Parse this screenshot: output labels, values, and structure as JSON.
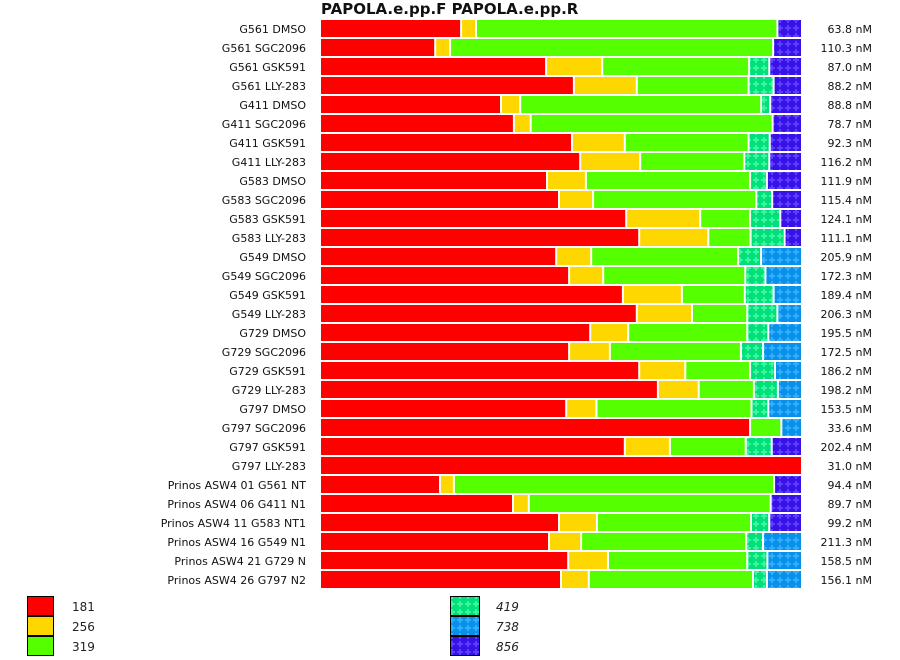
{
  "chart_data": {
    "type": "bar",
    "orientation": "horizontal-stacked-100",
    "title": "PAPOLA.e.pp.F  PAPOLA.e.pp.R",
    "unit": "percent of bar",
    "series_names": [
      "181",
      "256",
      "319",
      "419",
      "738",
      "856"
    ],
    "series_colors": [
      "#ff0000",
      "#ffd700",
      "#55ff00",
      "#00e07a",
      "#0a90e8",
      "#3a10e8"
    ],
    "series_italic": [
      false,
      false,
      false,
      true,
      true,
      true
    ],
    "rows": [
      {
        "label": "G561 DMSO",
        "value": "63.8 nM",
        "parts": [
          29.4,
          3.1,
          62.8,
          0,
          0,
          4.7
        ]
      },
      {
        "label": "G561 SGC2096",
        "value": "110.3 nM",
        "parts": [
          24.0,
          3.1,
          67.3,
          0,
          0,
          5.6
        ]
      },
      {
        "label": "G561 GSK591",
        "value": "87.0 nM",
        "parts": [
          47.1,
          11.7,
          30.6,
          4.2,
          0,
          6.4
        ]
      },
      {
        "label": "G561 LLY-283",
        "value": "88.2 nM",
        "parts": [
          52.9,
          13.1,
          23.3,
          5.2,
          0,
          5.5
        ]
      },
      {
        "label": "G411 DMSO",
        "value": "88.8 nM",
        "parts": [
          37.7,
          4.0,
          50.2,
          1.9,
          0,
          6.2
        ]
      },
      {
        "label": "G411 SGC2096",
        "value": "78.7 nM",
        "parts": [
          40.4,
          3.5,
          50.4,
          0,
          0,
          5.7
        ]
      },
      {
        "label": "G411 GSK591",
        "value": "92.3 nM",
        "parts": [
          52.5,
          11.0,
          25.8,
          4.4,
          0,
          6.3
        ]
      },
      {
        "label": "G411 LLY-283",
        "value": "116.2 nM",
        "parts": [
          54.2,
          12.5,
          21.7,
          5.2,
          0,
          6.4
        ]
      },
      {
        "label": "G583 DMSO",
        "value": "111.9 nM",
        "parts": [
          47.3,
          8.1,
          34.2,
          3.5,
          0,
          6.9
        ]
      },
      {
        "label": "G583 SGC2096",
        "value": "115.4 nM",
        "parts": [
          49.8,
          7.1,
          34.0,
          3.3,
          0,
          5.8
        ]
      },
      {
        "label": "G583 GSK591",
        "value": "124.1 nM",
        "parts": [
          63.8,
          15.4,
          10.4,
          6.3,
          0,
          4.1
        ]
      },
      {
        "label": "G583 LLY-283",
        "value": "111.1 nM",
        "parts": [
          66.5,
          14.4,
          8.8,
          7.1,
          0,
          3.2
        ]
      },
      {
        "label": "G549 DMSO",
        "value": "205.9 nM",
        "parts": [
          49.2,
          7.3,
          30.6,
          4.8,
          8.1,
          0
        ]
      },
      {
        "label": "G549 SGC2096",
        "value": "172.3 nM",
        "parts": [
          51.9,
          7.1,
          29.6,
          4.2,
          7.2,
          0
        ]
      },
      {
        "label": "G549 GSK591",
        "value": "189.4 nM",
        "parts": [
          63.1,
          12.3,
          13.1,
          6.0,
          5.5,
          0
        ]
      },
      {
        "label": "G549 LLY-283",
        "value": "206.3 nM",
        "parts": [
          66.0,
          11.5,
          11.5,
          6.3,
          4.7,
          0
        ]
      },
      {
        "label": "G729 DMSO",
        "value": "195.5 nM",
        "parts": [
          56.3,
          7.9,
          24.8,
          4.4,
          6.6,
          0
        ]
      },
      {
        "label": "G729 SGC2096",
        "value": "172.5 nM",
        "parts": [
          51.9,
          8.5,
          27.3,
          4.6,
          7.7,
          0
        ]
      },
      {
        "label": "G729 GSK591",
        "value": "186.2 nM",
        "parts": [
          66.5,
          9.6,
          13.5,
          5.2,
          5.2,
          0
        ]
      },
      {
        "label": "G729 LLY-283",
        "value": "198.2 nM",
        "parts": [
          70.4,
          8.5,
          11.5,
          5.0,
          4.6,
          0
        ]
      },
      {
        "label": "G797 DMSO",
        "value": "153.5 nM",
        "parts": [
          51.3,
          6.3,
          32.3,
          3.5,
          6.6,
          0
        ]
      },
      {
        "label": "G797 SGC2096",
        "value": "33.6 nM",
        "parts": [
          89.6,
          0,
          6.5,
          0,
          3.9,
          0
        ]
      },
      {
        "label": "G797 GSK591",
        "value": "202.4 nM",
        "parts": [
          63.5,
          9.4,
          15.8,
          5.4,
          0,
          5.9
        ]
      },
      {
        "label": "G797 LLY-283",
        "value": "31.0 nM",
        "parts": [
          100,
          0,
          0,
          0,
          0,
          0
        ]
      },
      {
        "label": "Prinos ASW4 01 G561 NT",
        "value": "94.4 nM",
        "parts": [
          25.0,
          2.9,
          66.7,
          0,
          0,
          5.4
        ]
      },
      {
        "label": "Prinos ASW4 06 G411 N1",
        "value": "89.7 nM",
        "parts": [
          40.2,
          3.3,
          50.4,
          0,
          0,
          6.1
        ]
      },
      {
        "label": "Prinos ASW4 11 G583 NT1",
        "value": "99.2 nM",
        "parts": [
          49.8,
          7.9,
          32.1,
          3.8,
          0,
          6.4
        ]
      },
      {
        "label": "Prinos ASW4 16 G549 N1",
        "value": "211.3 nM",
        "parts": [
          47.7,
          6.7,
          34.4,
          3.5,
          7.7,
          0
        ]
      },
      {
        "label": "Prinos ASW4 21 G729 N",
        "value": "158.5 nM",
        "parts": [
          51.7,
          8.3,
          29.0,
          4.2,
          6.8,
          0
        ]
      },
      {
        "label": "Prinos ASW4 26 G797 N2",
        "value": "156.1 nM",
        "parts": [
          50.2,
          5.8,
          34.2,
          2.9,
          6.9,
          0
        ]
      }
    ],
    "legend": [
      "181",
      "256",
      "319",
      "419",
      "738",
      "856"
    ],
    "legend_placement": "bottom",
    "grid": false
  }
}
